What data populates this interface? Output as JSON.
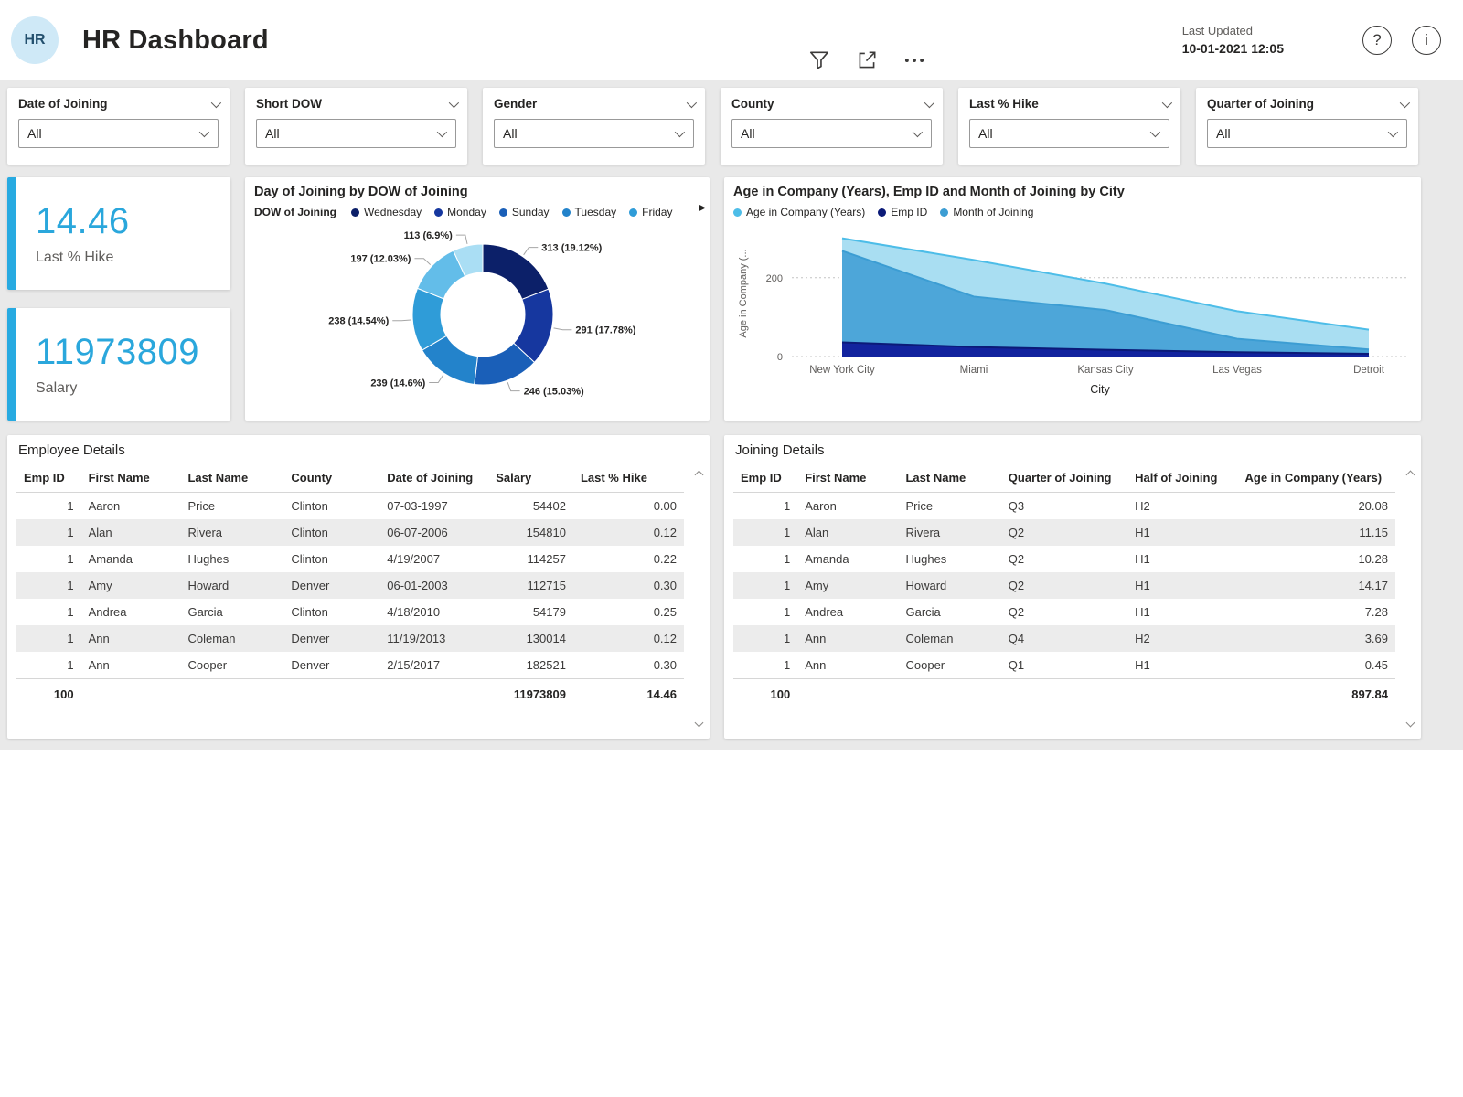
{
  "header": {
    "logo": "HR",
    "title": "HR Dashboard",
    "last_updated_label": "Last Updated",
    "last_updated_value": "10-01-2021 12:05",
    "help_icon": "?",
    "info_icon": "i"
  },
  "colors": {
    "accent": "#27aae1",
    "kpi": "#2aa7dc",
    "avatar_bg": "#cfe9f7"
  },
  "filters": [
    {
      "label": "Date of Joining",
      "value": "All"
    },
    {
      "label": "Short DOW",
      "value": "All"
    },
    {
      "label": "Gender",
      "value": "All"
    },
    {
      "label": "County",
      "value": "All"
    },
    {
      "label": "Last % Hike",
      "value": "All"
    },
    {
      "label": "Quarter of Joining",
      "value": "All"
    }
  ],
  "kpis": [
    {
      "value": "14.46",
      "label": "Last % Hike"
    },
    {
      "value": "11973809",
      "label": "Salary"
    }
  ],
  "chart_data": [
    {
      "type": "pie",
      "title": "Day of Joining by DOW of Joining",
      "legend_title": "DOW of Joining",
      "legend_more_icon": "▶",
      "slices": [
        {
          "label": "Wednesday",
          "value": 313,
          "pct": "19.12%",
          "color": "#0c2069"
        },
        {
          "label": "Monday",
          "value": 291,
          "pct": "17.78%",
          "color": "#16379f"
        },
        {
          "label": "Sunday",
          "value": 246,
          "pct": "15.03%",
          "color": "#1a5fb8"
        },
        {
          "label": "Tuesday",
          "value": 239,
          "pct": "14.6%",
          "color": "#2383cb"
        },
        {
          "label": "Friday",
          "value": 238,
          "pct": "14.54%",
          "color": "#2f9cd8"
        },
        {
          "label": "",
          "value": 197,
          "pct": "12.03%",
          "color": "#63bde9"
        },
        {
          "label": "",
          "value": 113,
          "pct": "6.9%",
          "color": "#aadef4"
        }
      ]
    },
    {
      "type": "area",
      "title": "Age in Company (Years), Emp ID and Month of Joining by City",
      "xlabel": "City",
      "ylabel": "Age in Company (...",
      "categories": [
        "New York City",
        "Miami",
        "Kansas City",
        "Las Vegas",
        "Detroit"
      ],
      "yticks": [
        0,
        200
      ],
      "ymax": 320,
      "legend_position": "top",
      "grid": "dotted-horizontal",
      "series": [
        {
          "name": "Age in Company (Years)",
          "color": "#4dbde8",
          "fill": "#a9def2",
          "values": [
            300,
            245,
            185,
            115,
            68
          ]
        },
        {
          "name": "Emp ID",
          "color": "#0b1a78",
          "fill": "#12239e",
          "values": [
            36,
            24,
            17,
            11,
            7
          ]
        },
        {
          "name": "Month of Joining",
          "color": "#3c9dd3",
          "fill": "#4da6d9",
          "values": [
            268,
            152,
            118,
            45,
            18
          ]
        }
      ]
    }
  ],
  "employee_table": {
    "title": "Employee Details",
    "columns": [
      "Emp ID",
      "First Name",
      "Last Name",
      "County",
      "Date of Joining",
      "Salary",
      "Last % Hike"
    ],
    "rows": [
      [
        "1",
        "Aaron",
        "Price",
        "Clinton",
        "07-03-1997",
        "54402",
        "0.00"
      ],
      [
        "1",
        "Alan",
        "Rivera",
        "Clinton",
        "06-07-2006",
        "154810",
        "0.12"
      ],
      [
        "1",
        "Amanda",
        "Hughes",
        "Clinton",
        "4/19/2007",
        "114257",
        "0.22"
      ],
      [
        "1",
        "Amy",
        "Howard",
        "Denver",
        "06-01-2003",
        "112715",
        "0.30"
      ],
      [
        "1",
        "Andrea",
        "Garcia",
        "Clinton",
        "4/18/2010",
        "54179",
        "0.25"
      ],
      [
        "1",
        "Ann",
        "Coleman",
        "Denver",
        "11/19/2013",
        "130014",
        "0.12"
      ],
      [
        "1",
        "Ann",
        "Cooper",
        "Denver",
        "2/15/2017",
        "182521",
        "0.30"
      ]
    ],
    "total": [
      "100",
      "",
      "",
      "",
      "",
      "11973809",
      "14.46"
    ]
  },
  "joining_table": {
    "title": "Joining Details",
    "columns": [
      "Emp ID",
      "First Name",
      "Last Name",
      "Quarter of Joining",
      "Half of Joining",
      "Age in Company (Years)"
    ],
    "rows": [
      [
        "1",
        "Aaron",
        "Price",
        "Q3",
        "H2",
        "20.08"
      ],
      [
        "1",
        "Alan",
        "Rivera",
        "Q2",
        "H1",
        "11.15"
      ],
      [
        "1",
        "Amanda",
        "Hughes",
        "Q2",
        "H1",
        "10.28"
      ],
      [
        "1",
        "Amy",
        "Howard",
        "Q2",
        "H1",
        "14.17"
      ],
      [
        "1",
        "Andrea",
        "Garcia",
        "Q2",
        "H1",
        "7.28"
      ],
      [
        "1",
        "Ann",
        "Coleman",
        "Q4",
        "H2",
        "3.69"
      ],
      [
        "1",
        "Ann",
        "Cooper",
        "Q1",
        "H1",
        "0.45"
      ]
    ],
    "total": [
      "100",
      "",
      "",
      "",
      "",
      "897.84"
    ]
  }
}
